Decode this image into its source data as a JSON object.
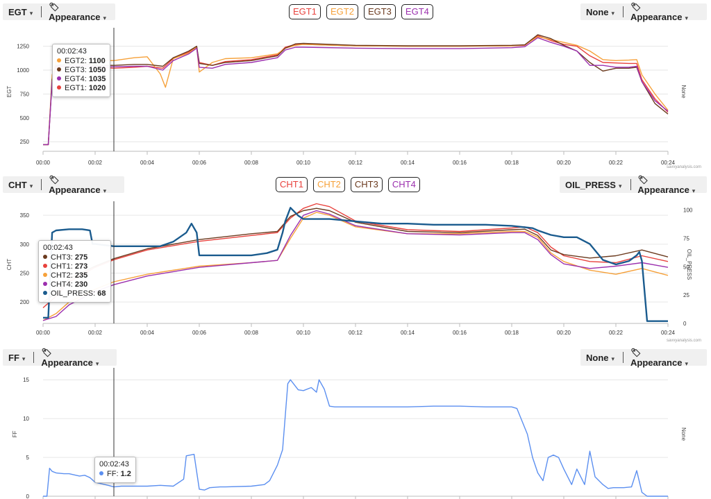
{
  "panels": [
    {
      "left_selector": "EGT",
      "left_appearance": "Appearance",
      "right_selector": "None",
      "right_appearance": "Appearance",
      "legend": [
        {
          "label": "EGT1",
          "color": "#e8413c"
        },
        {
          "label": "EGT2",
          "color": "#f6a13a"
        },
        {
          "label": "EGT3",
          "color": "#6b3a1e"
        },
        {
          "label": "EGT4",
          "color": "#9b2fae"
        }
      ],
      "tooltip": {
        "time": "00:02:43",
        "rows": [
          {
            "name": "EGT2",
            "value": "1100",
            "color": "#f6a13a"
          },
          {
            "name": "EGT3",
            "value": "1050",
            "color": "#6b3a1e"
          },
          {
            "name": "EGT4",
            "value": "1035",
            "color": "#9b2fae"
          },
          {
            "name": "EGT1",
            "value": "1020",
            "color": "#e8413c"
          }
        ]
      },
      "credit": "savvyanalysis.com"
    },
    {
      "left_selector": "CHT",
      "left_appearance": "Appearance",
      "right_selector": "OIL_PRESS",
      "right_appearance": "Appearance",
      "legend": [
        {
          "label": "CHT1",
          "color": "#e8413c"
        },
        {
          "label": "CHT2",
          "color": "#f6a13a"
        },
        {
          "label": "CHT3",
          "color": "#6b3a1e"
        },
        {
          "label": "CHT4",
          "color": "#9b2fae"
        }
      ],
      "tooltip": {
        "time": "00:02:43",
        "rows": [
          {
            "name": "CHT3",
            "value": "275",
            "color": "#6b3a1e"
          },
          {
            "name": "CHT1",
            "value": "273",
            "color": "#e8413c"
          },
          {
            "name": "CHT2",
            "value": "235",
            "color": "#f6a13a"
          },
          {
            "name": "CHT4",
            "value": "230",
            "color": "#9b2fae"
          },
          {
            "name": "OIL_PRESS",
            "value": "68",
            "color": "#1a5b8e"
          }
        ]
      },
      "credit": "savvyanalysis.com"
    },
    {
      "left_selector": "FF",
      "left_appearance": "Appearance",
      "right_selector": "None",
      "right_appearance": "Appearance",
      "legend": [],
      "tooltip": {
        "time": "00:02:43",
        "rows": [
          {
            "name": "FF",
            "value": "1.2",
            "color": "#5b8ff0"
          }
        ]
      },
      "credit": ""
    }
  ],
  "chart_data": [
    {
      "type": "line",
      "title": "",
      "xlabel": "",
      "ylabel": "EGT",
      "y2label": "None",
      "xlim": [
        0,
        24
      ],
      "ylim": [
        150,
        1400
      ],
      "xticks": [
        "00:00",
        "00:02",
        "00:04",
        "00:06",
        "00:08",
        "00:10",
        "00:12",
        "00:14",
        "00:16",
        "00:18",
        "00:20",
        "00:22",
        "00:24"
      ],
      "yticks": [
        250,
        500,
        750,
        1000,
        1250
      ],
      "cursor_x": 2.72,
      "series": [
        {
          "name": "EGT1",
          "color": "#e8413c",
          "x": [
            0,
            0.2,
            0.35,
            0.5,
            1,
            1.5,
            2,
            2.72,
            3.5,
            4,
            4.6,
            5,
            5.6,
            5.9,
            6,
            6.5,
            7,
            8,
            9,
            9.3,
            9.7,
            10,
            12,
            14,
            16,
            18,
            18.5,
            19,
            19.5,
            20,
            20.5,
            21,
            21.5,
            22,
            22.5,
            22.8,
            23,
            23.5,
            24
          ],
          "y": [
            220,
            220,
            900,
            1030,
            1040,
            1050,
            1030,
            1020,
            1030,
            1040,
            1020,
            1120,
            1190,
            1240,
            1080,
            1050,
            1090,
            1110,
            1160,
            1240,
            1270,
            1270,
            1255,
            1250,
            1250,
            1255,
            1260,
            1360,
            1310,
            1270,
            1250,
            1150,
            1080,
            1075,
            1070,
            1070,
            900,
            700,
            560
          ]
        },
        {
          "name": "EGT2",
          "color": "#f6a13a",
          "x": [
            0,
            0.2,
            0.35,
            0.5,
            1,
            1.5,
            2,
            2.72,
            3.5,
            4,
            4.5,
            4.7,
            5,
            5.6,
            5.9,
            6,
            6.5,
            7,
            8,
            9,
            9.3,
            9.7,
            10,
            12,
            14,
            16,
            18,
            18.5,
            19,
            19.5,
            20,
            20.5,
            21,
            21.5,
            22,
            22.5,
            22.8,
            23,
            23.5,
            24
          ],
          "y": [
            220,
            220,
            950,
            1090,
            1120,
            1150,
            1100,
            1100,
            1130,
            1140,
            960,
            820,
            1120,
            1180,
            1240,
            980,
            1080,
            1120,
            1130,
            1170,
            1230,
            1260,
            1270,
            1255,
            1250,
            1250,
            1255,
            1265,
            1350,
            1320,
            1290,
            1260,
            1200,
            1110,
            1100,
            1105,
            1110,
            950,
            750,
            580
          ]
        },
        {
          "name": "EGT3",
          "color": "#6b3a1e",
          "x": [
            0,
            0.2,
            0.35,
            0.5,
            1,
            1.5,
            2,
            2.72,
            3.5,
            4,
            4.6,
            5,
            5.6,
            5.9,
            6,
            6.5,
            7,
            8,
            9,
            9.3,
            9.7,
            10,
            12,
            14,
            16,
            18,
            18.5,
            19,
            19.5,
            20,
            20.5,
            21,
            21.5,
            22,
            22.5,
            22.8,
            23,
            23.5,
            24
          ],
          "y": [
            220,
            220,
            900,
            1050,
            1060,
            1070,
            1050,
            1050,
            1060,
            1060,
            1040,
            1130,
            1200,
            1250,
            1070,
            1050,
            1080,
            1100,
            1150,
            1230,
            1275,
            1280,
            1260,
            1255,
            1255,
            1260,
            1265,
            1370,
            1330,
            1260,
            1200,
            1080,
            990,
            1020,
            1020,
            1030,
            880,
            650,
            540
          ]
        },
        {
          "name": "EGT4",
          "color": "#9b2fae",
          "x": [
            0,
            0.2,
            0.35,
            0.5,
            1,
            1.5,
            2,
            2.72,
            3.5,
            4,
            4.6,
            5,
            5.6,
            5.9,
            6,
            6.5,
            7,
            8,
            9,
            9.3,
            9.7,
            10,
            12,
            14,
            16,
            18,
            18.5,
            19,
            19.5,
            20,
            20.5,
            21,
            21.5,
            22,
            22.5,
            22.8,
            23,
            23.5,
            24
          ],
          "y": [
            220,
            220,
            880,
            1040,
            1040,
            1045,
            1035,
            1035,
            1040,
            1040,
            1000,
            1100,
            1170,
            1230,
            1030,
            1020,
            1060,
            1080,
            1130,
            1210,
            1240,
            1240,
            1230,
            1225,
            1225,
            1235,
            1245,
            1340,
            1290,
            1250,
            1200,
            1050,
            1050,
            1030,
            1030,
            1040,
            880,
            680,
            570
          ]
        }
      ]
    },
    {
      "type": "line",
      "title": "",
      "xlabel": "",
      "ylabel": "CHT",
      "y2label": "OIL_PRESS",
      "xlim": [
        0,
        24
      ],
      "ylim": [
        163,
        367
      ],
      "y2lim": [
        0,
        104
      ],
      "xticks": [
        "00:00",
        "00:02",
        "00:04",
        "00:06",
        "00:08",
        "00:10",
        "00:12",
        "00:14",
        "00:16",
        "00:18",
        "00:20",
        "00:22",
        "00:24"
      ],
      "yticks": [
        200,
        250,
        300,
        350
      ],
      "y2ticks": [
        0,
        25,
        50,
        75,
        100
      ],
      "cursor_x": 2.72,
      "series": [
        {
          "name": "CHT1",
          "color": "#e8413c",
          "axis": "left",
          "x": [
            0,
            0.5,
            1,
            2,
            2.72,
            4,
            6,
            8,
            9,
            9.5,
            10,
            10.5,
            11,
            12,
            14,
            16,
            18,
            18.5,
            19,
            19.5,
            20,
            21,
            22,
            23,
            24
          ],
          "y": [
            190,
            210,
            235,
            260,
            273,
            290,
            305,
            315,
            320,
            345,
            362,
            370,
            365,
            340,
            325,
            322,
            328,
            330,
            320,
            295,
            280,
            270,
            268,
            280,
            270
          ]
        },
        {
          "name": "CHT2",
          "color": "#f6a13a",
          "axis": "left",
          "x": [
            0,
            0.5,
            1,
            2,
            2.72,
            4,
            6,
            8,
            9,
            9.5,
            10,
            10.5,
            11,
            12,
            14,
            16,
            18,
            18.5,
            19,
            19.5,
            20,
            21,
            22,
            23,
            24
          ],
          "y": [
            168,
            180,
            200,
            222,
            235,
            248,
            262,
            268,
            272,
            310,
            345,
            355,
            350,
            330,
            318,
            318,
            322,
            322,
            312,
            285,
            270,
            255,
            248,
            258,
            246
          ]
        },
        {
          "name": "CHT3",
          "color": "#6b3a1e",
          "axis": "left",
          "x": [
            0,
            0.5,
            1,
            2,
            2.72,
            4,
            6,
            8,
            9,
            9.5,
            10,
            10.5,
            11,
            12,
            14,
            16,
            18,
            18.5,
            19,
            19.5,
            20,
            21,
            22,
            23,
            24
          ],
          "y": [
            200,
            215,
            240,
            262,
            275,
            292,
            308,
            318,
            322,
            348,
            358,
            362,
            358,
            338,
            322,
            320,
            325,
            326,
            315,
            290,
            282,
            276,
            280,
            290,
            278
          ]
        },
        {
          "name": "CHT4",
          "color": "#9b2fae",
          "axis": "left",
          "x": [
            0,
            0.5,
            1,
            2,
            2.72,
            4,
            6,
            8,
            9,
            9.5,
            10,
            10.5,
            11,
            12,
            14,
            16,
            18,
            18.5,
            19,
            19.5,
            20,
            21,
            22,
            23,
            24
          ],
          "y": [
            168,
            175,
            195,
            218,
            230,
            245,
            260,
            268,
            272,
            315,
            350,
            358,
            352,
            332,
            318,
            316,
            320,
            320,
            308,
            282,
            266,
            258,
            262,
            268,
            260
          ]
        },
        {
          "name": "OIL_PRESS",
          "color": "#1a5b8e",
          "axis": "right",
          "x": [
            0,
            0.2,
            0.35,
            0.5,
            1,
            1.5,
            1.8,
            1.9,
            2,
            2.72,
            3,
            3.5,
            4.5,
            5,
            5.5,
            5.7,
            5.9,
            6,
            6.5,
            7,
            8,
            8.6,
            9,
            9.2,
            9.3,
            9.5,
            9.8,
            10,
            11,
            12,
            13,
            14,
            15,
            16,
            17,
            18,
            18.8,
            19,
            19.5,
            20,
            20.5,
            21,
            21.5,
            22,
            22.5,
            22.8,
            22.9,
            23,
            23.2,
            24
          ],
          "y": [
            5,
            5,
            80,
            82,
            83,
            83,
            82,
            70,
            70,
            68,
            68,
            68,
            68,
            72,
            80,
            88,
            80,
            60,
            60,
            60,
            60,
            62,
            65,
            80,
            90,
            102,
            95,
            92,
            92,
            90,
            88,
            88,
            87,
            87,
            87,
            86,
            84,
            82,
            78,
            76,
            76,
            70,
            56,
            52,
            55,
            60,
            63,
            55,
            2,
            2
          ]
        }
      ]
    },
    {
      "type": "line",
      "title": "",
      "xlabel": "",
      "ylabel": "FF",
      "y2label": "None",
      "xlim": [
        0,
        24
      ],
      "ylim": [
        0,
        16
      ],
      "xticks": [],
      "yticks": [
        0,
        5,
        10,
        15
      ],
      "cursor_x": 2.72,
      "series": [
        {
          "name": "FF",
          "color": "#5b8ff0",
          "x": [
            0,
            0.15,
            0.25,
            0.35,
            0.5,
            0.8,
            1,
            1.4,
            1.6,
            1.8,
            2,
            2.5,
            2.72,
            3,
            3.5,
            4,
            4.5,
            5,
            5.4,
            5.5,
            5.8,
            6,
            6.2,
            6.4,
            6.8,
            7,
            8,
            8.5,
            8.7,
            9,
            9.2,
            9.4,
            9.5,
            9.8,
            10,
            10.3,
            10.5,
            10.6,
            10.8,
            11,
            11.2,
            12,
            13,
            14,
            15,
            16,
            17,
            18,
            18.2,
            18.6,
            18.8,
            19,
            19.2,
            19.4,
            19.6,
            19.8,
            20,
            20.3,
            20.5,
            20.8,
            21,
            21.2,
            21.5,
            21.7,
            21.9,
            22,
            22.3,
            22.6,
            22.8,
            23,
            23.2,
            24
          ],
          "y": [
            0,
            0,
            3.6,
            3.2,
            3.0,
            2.9,
            2.9,
            2.6,
            2.7,
            2.4,
            1.8,
            1.4,
            1.2,
            1.3,
            1.3,
            1.3,
            1.4,
            1.3,
            2.2,
            5.2,
            5.4,
            0.9,
            0.8,
            1.1,
            1.2,
            1.2,
            1.3,
            1.5,
            2.0,
            4.0,
            6.0,
            14.5,
            15.0,
            13.7,
            13.6,
            14.0,
            13.4,
            15.0,
            13.8,
            11.6,
            11.5,
            11.5,
            11.5,
            11.5,
            11.6,
            11.6,
            11.5,
            11.5,
            11.3,
            8.0,
            5.0,
            3.0,
            2.0,
            5.0,
            5.3,
            5.0,
            3.5,
            1.5,
            3.5,
            1.5,
            5.8,
            2.5,
            1.5,
            1.0,
            1.1,
            1.1,
            1.1,
            1.2,
            3.3,
            0.5,
            0,
            0
          ]
        }
      ]
    }
  ]
}
